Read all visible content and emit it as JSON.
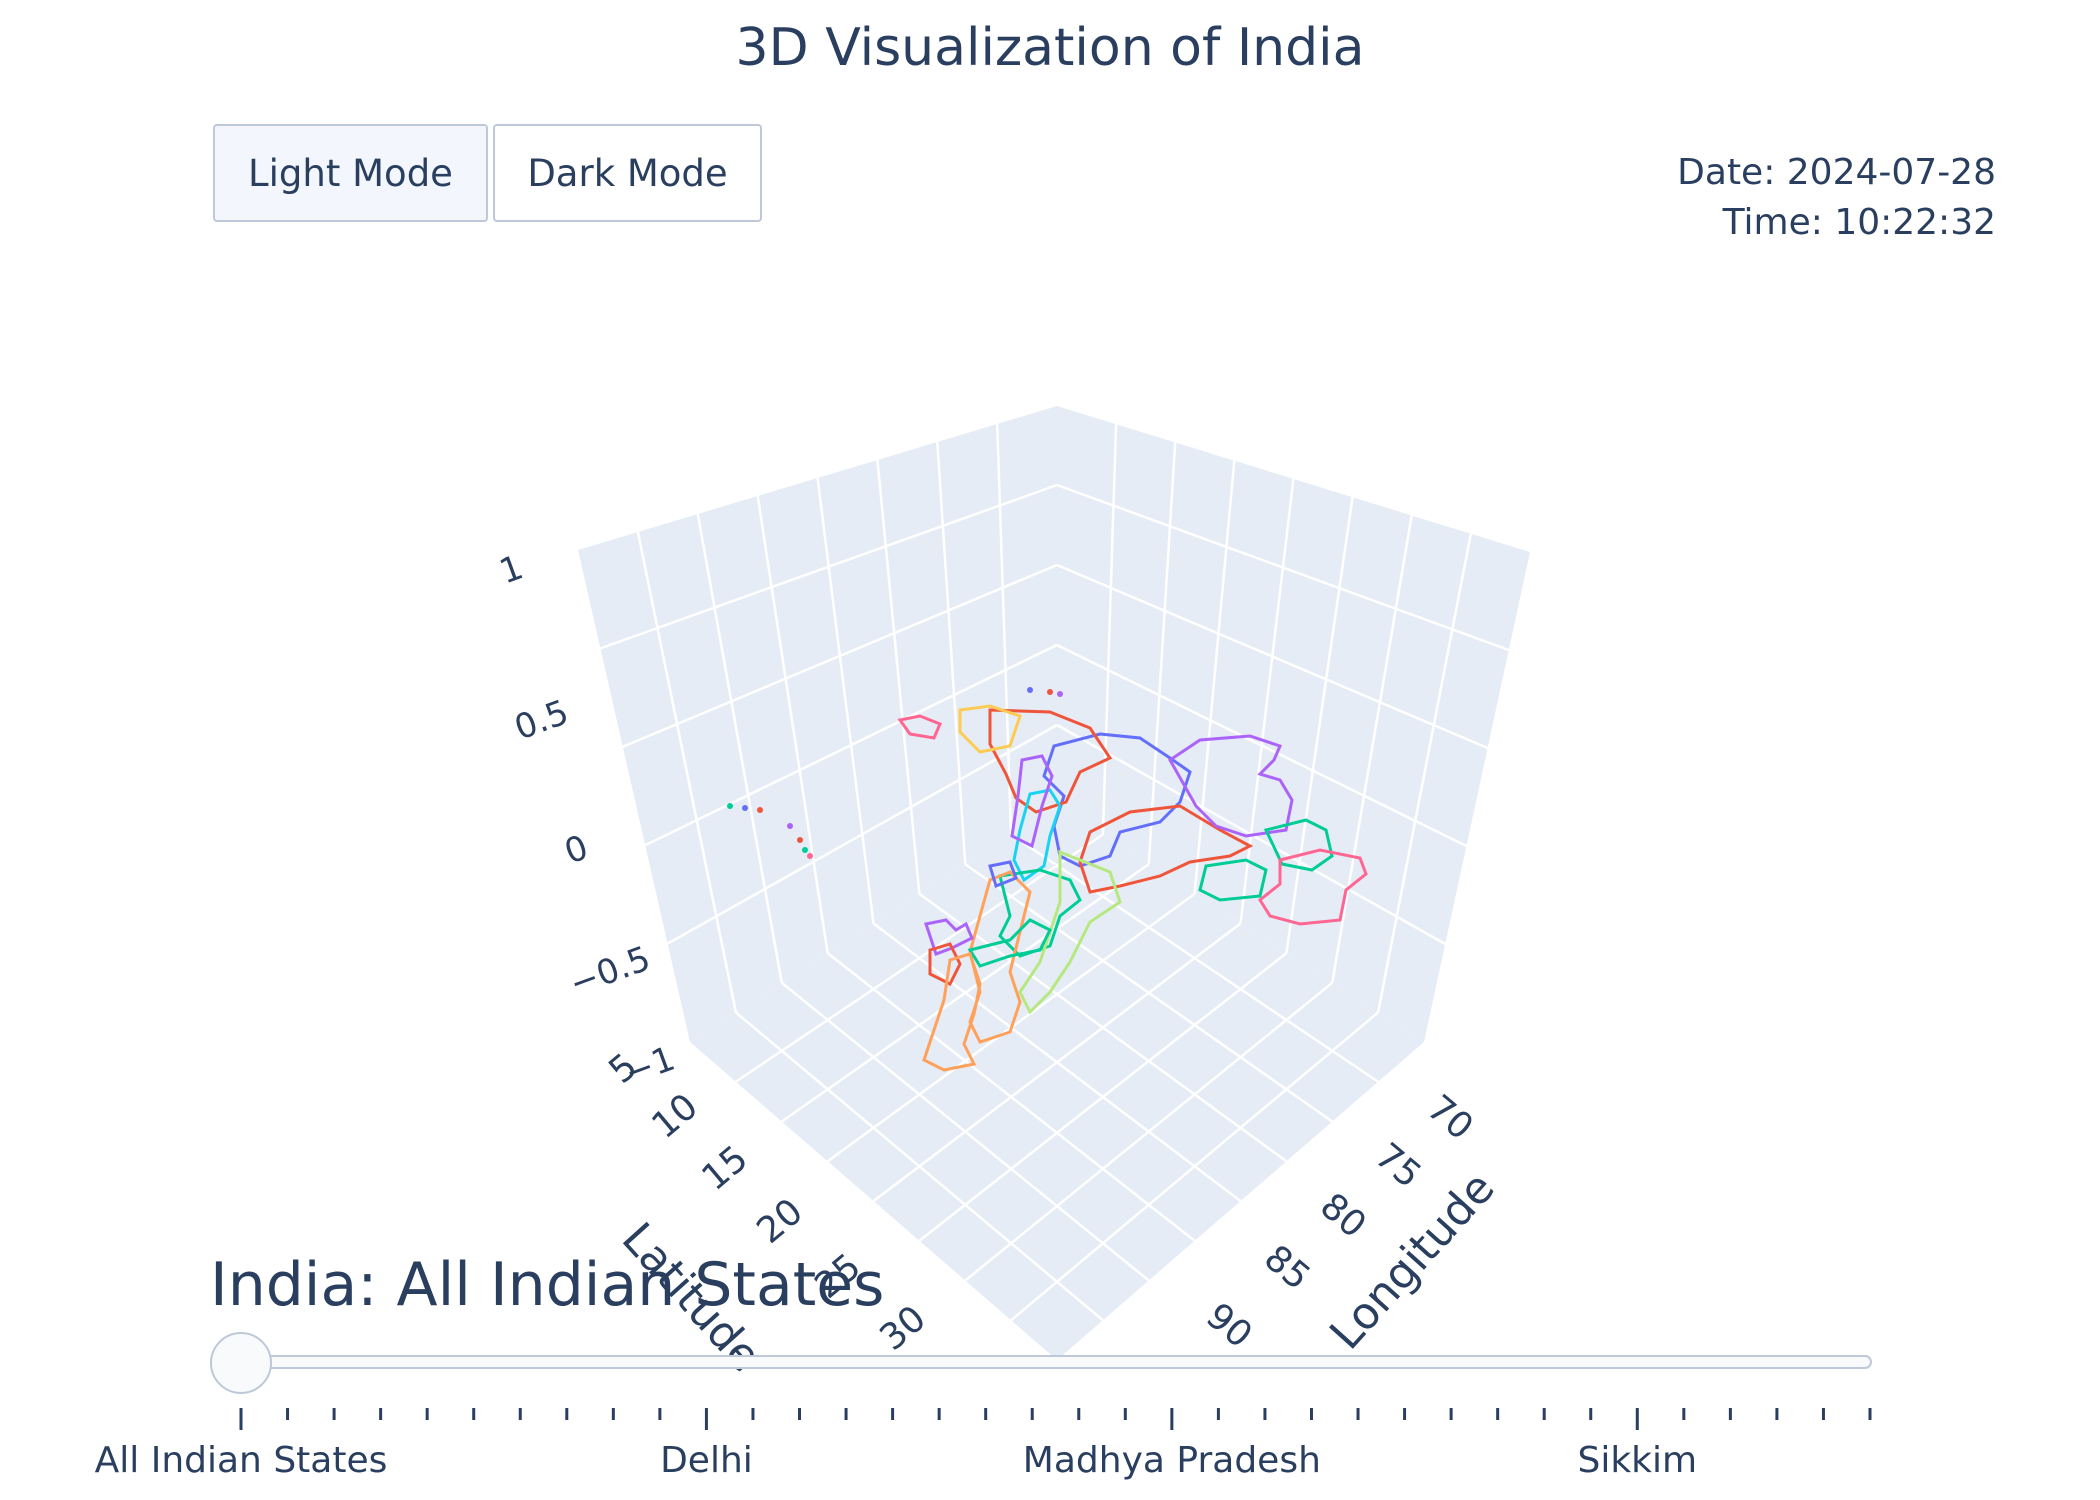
{
  "header": {
    "title": "3D Visualization of India"
  },
  "buttons": {
    "light": "Light Mode",
    "dark": "Dark Mode"
  },
  "info": {
    "date": "Date: 2024-07-28",
    "time": "Time: 10:22:32"
  },
  "colors": {
    "text": "#2a3f5f",
    "scene_bg": "#e5ecf6",
    "grid": "#ffffff",
    "slider_border": "#bec8d9",
    "traces": [
      "#636efa",
      "#ef553b",
      "#00cc96",
      "#ab63fa",
      "#ffa15a",
      "#19d3f3",
      "#ff6692",
      "#b6e880",
      "#ff97ff",
      "#fecb52"
    ]
  },
  "chart_data": {
    "type": "scatter3d-lines",
    "title": "3D Visualization of India",
    "axes": {
      "x": {
        "label": "Longitude",
        "ticks": [
          "70",
          "75",
          "80",
          "85",
          "90"
        ]
      },
      "y": {
        "label": "Latitude",
        "ticks": [
          "5",
          "10",
          "15",
          "20",
          "25",
          "30"
        ]
      },
      "z": {
        "ticks": [
          "−1",
          "−0.5",
          "0",
          "0.5",
          "1"
        ],
        "range": [
          -1,
          1
        ]
      }
    },
    "z_value": 0,
    "grid": true,
    "series_summary": "State boundary outlines of Indian states drawn as colored lines at z = 0"
  },
  "slider": {
    "current": "India: All Indian States",
    "labels": [
      "All Indian States",
      "Delhi",
      "Madhya Pradesh",
      "Sikkim"
    ],
    "tick_count": 36,
    "major_every": 10,
    "value_index": 0
  }
}
